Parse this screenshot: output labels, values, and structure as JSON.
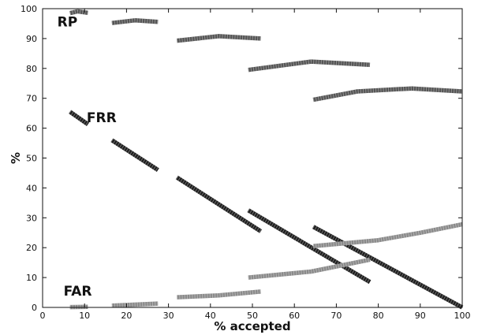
{
  "chart_data": {
    "type": "scatter",
    "title": "",
    "xlabel": "% accepted",
    "ylabel": "%",
    "xlim": [
      0,
      100
    ],
    "ylim": [
      0,
      100
    ],
    "xticks": [
      0,
      10,
      20,
      30,
      40,
      50,
      60,
      70,
      80,
      90,
      100
    ],
    "yticks": [
      0,
      10,
      20,
      30,
      40,
      50,
      60,
      70,
      80,
      90,
      100
    ],
    "grid": false,
    "legend": "none",
    "annotations": [
      {
        "text": "RP",
        "x": 3.5,
        "y": 94
      },
      {
        "text": "FRR",
        "x": 10.5,
        "y": 62
      },
      {
        "text": "FAR",
        "x": 5,
        "y": 4
      }
    ],
    "series": [
      {
        "group": "RP",
        "color": "#555555",
        "x": [
          6.5,
          8.3,
          10.8
        ],
        "y": [
          98.5,
          99.1,
          98.6
        ]
      },
      {
        "group": "RP",
        "color": "#555555",
        "x": [
          16.5,
          22,
          27.5
        ],
        "y": [
          95.2,
          96.1,
          95.6
        ]
      },
      {
        "group": "RP",
        "color": "#555555",
        "x": [
          32,
          42,
          52
        ],
        "y": [
          89.3,
          90.8,
          90
        ]
      },
      {
        "group": "RP",
        "color": "#555555",
        "x": [
          49,
          64,
          78
        ],
        "y": [
          79.5,
          82.3,
          81.2
        ]
      },
      {
        "group": "RP",
        "color": "#555555",
        "x": [
          64.5,
          75,
          88,
          100
        ],
        "y": [
          69.5,
          72.3,
          73.3,
          72.3
        ]
      },
      {
        "group": "FRR",
        "color": "#1e1e1e",
        "x": [
          6.5,
          10.8
        ],
        "y": [
          65.5,
          61.3
        ]
      },
      {
        "group": "FRR",
        "color": "#1e1e1e",
        "x": [
          16.5,
          27.5
        ],
        "y": [
          56,
          46
        ]
      },
      {
        "group": "FRR",
        "color": "#1e1e1e",
        "x": [
          32,
          52
        ],
        "y": [
          43.5,
          25.5
        ]
      },
      {
        "group": "FRR",
        "color": "#1e1e1e",
        "x": [
          49,
          78
        ],
        "y": [
          32.5,
          8.5
        ]
      },
      {
        "group": "FRR",
        "color": "#1e1e1e",
        "x": [
          64.5,
          100
        ],
        "y": [
          27,
          0
        ]
      },
      {
        "group": "FAR",
        "color": "#8a8a8a",
        "x": [
          6.5,
          10.8
        ],
        "y": [
          0.1,
          0.2
        ]
      },
      {
        "group": "FAR",
        "color": "#8a8a8a",
        "x": [
          16.5,
          27.5
        ],
        "y": [
          0.6,
          1.3
        ]
      },
      {
        "group": "FAR",
        "color": "#8a8a8a",
        "x": [
          32,
          42,
          52
        ],
        "y": [
          3.4,
          4,
          5.3
        ]
      },
      {
        "group": "FAR",
        "color": "#8a8a8a",
        "x": [
          49,
          64,
          78
        ],
        "y": [
          10,
          12,
          16
        ]
      },
      {
        "group": "FAR",
        "color": "#8a8a8a",
        "x": [
          64.5,
          80,
          90,
          100
        ],
        "y": [
          20.5,
          22.5,
          25,
          27.8
        ]
      }
    ]
  }
}
